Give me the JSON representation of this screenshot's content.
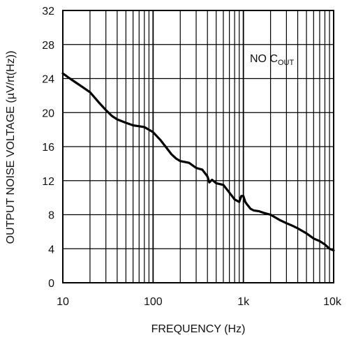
{
  "chart_data": {
    "type": "line",
    "title": "",
    "xlabel": "FREQUENCY (Hz)",
    "ylabel": "OUTPUT NOISE VOLTAGE (µV/rt(Hz))",
    "x_scale": "log",
    "xlim": [
      10,
      10000
    ],
    "ylim": [
      0,
      32
    ],
    "grid": true,
    "x_tick_labels": [
      "10",
      "100",
      "1k",
      "10k"
    ],
    "x_tick_values": [
      10,
      100,
      1000,
      10000
    ],
    "y_ticks": [
      0,
      4,
      8,
      12,
      16,
      20,
      24,
      28,
      32
    ],
    "annotation": {
      "main": "NO C",
      "subscript": "OUT"
    },
    "series": [
      {
        "x": [
          10,
          12,
          15,
          20,
          25,
          30,
          35,
          40,
          50,
          60,
          70,
          80,
          100,
          120,
          140,
          160,
          180,
          200,
          250,
          300,
          350,
          400,
          420,
          450,
          500,
          600,
          700,
          800,
          900,
          950,
          1000,
          1050,
          1100,
          1200,
          1300,
          1500,
          1700,
          2000,
          2500,
          3000,
          3500,
          4000,
          5000,
          6000,
          7000,
          8000,
          9000,
          10000
        ],
        "y": [
          24.6,
          24.0,
          23.3,
          22.4,
          21.2,
          20.3,
          19.6,
          19.2,
          18.8,
          18.5,
          18.4,
          18.3,
          17.7,
          16.8,
          15.9,
          15.1,
          14.6,
          14.3,
          14.1,
          13.5,
          13.3,
          12.5,
          11.8,
          12.1,
          11.7,
          11.5,
          10.6,
          9.8,
          9.5,
          10.2,
          10.2,
          9.5,
          9.2,
          8.7,
          8.5,
          8.4,
          8.2,
          8.0,
          7.4,
          7.0,
          6.7,
          6.4,
          5.8,
          5.2,
          4.9,
          4.5,
          4.0,
          3.8
        ]
      }
    ]
  }
}
